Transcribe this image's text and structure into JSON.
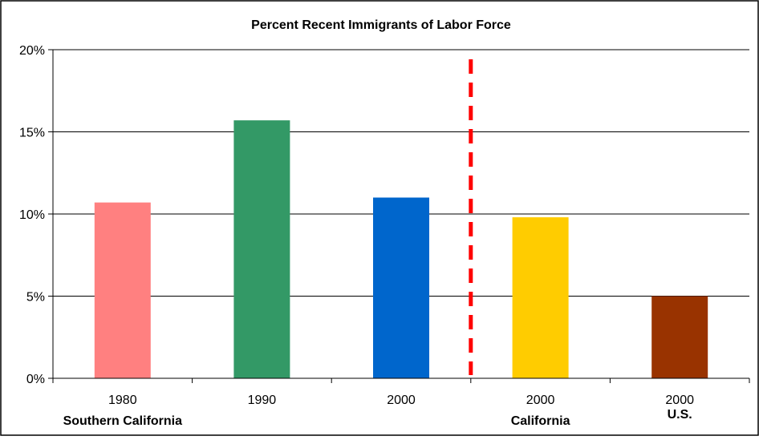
{
  "chart_data": {
    "type": "bar",
    "title": "Percent Recent Immigrants of Labor Force",
    "categories": [
      "1980",
      "1990",
      "2000",
      "2000",
      "2000"
    ],
    "values": [
      10.7,
      15.7,
      11.0,
      9.8,
      5.0
    ],
    "colors": [
      "#ff8080",
      "#339966",
      "#0066cc",
      "#ffcc00",
      "#993300"
    ],
    "group_labels": [
      "Southern California",
      "",
      "",
      "California",
      "U.S."
    ],
    "y_ticks": [
      "0%",
      "5%",
      "10%",
      "15%",
      "20%"
    ],
    "ylim": [
      0,
      20
    ],
    "ylabel": "",
    "xlabel": "",
    "grid": true,
    "divider": {
      "after_category_index": 2,
      "color": "#ff0000",
      "style": "dashed"
    }
  }
}
